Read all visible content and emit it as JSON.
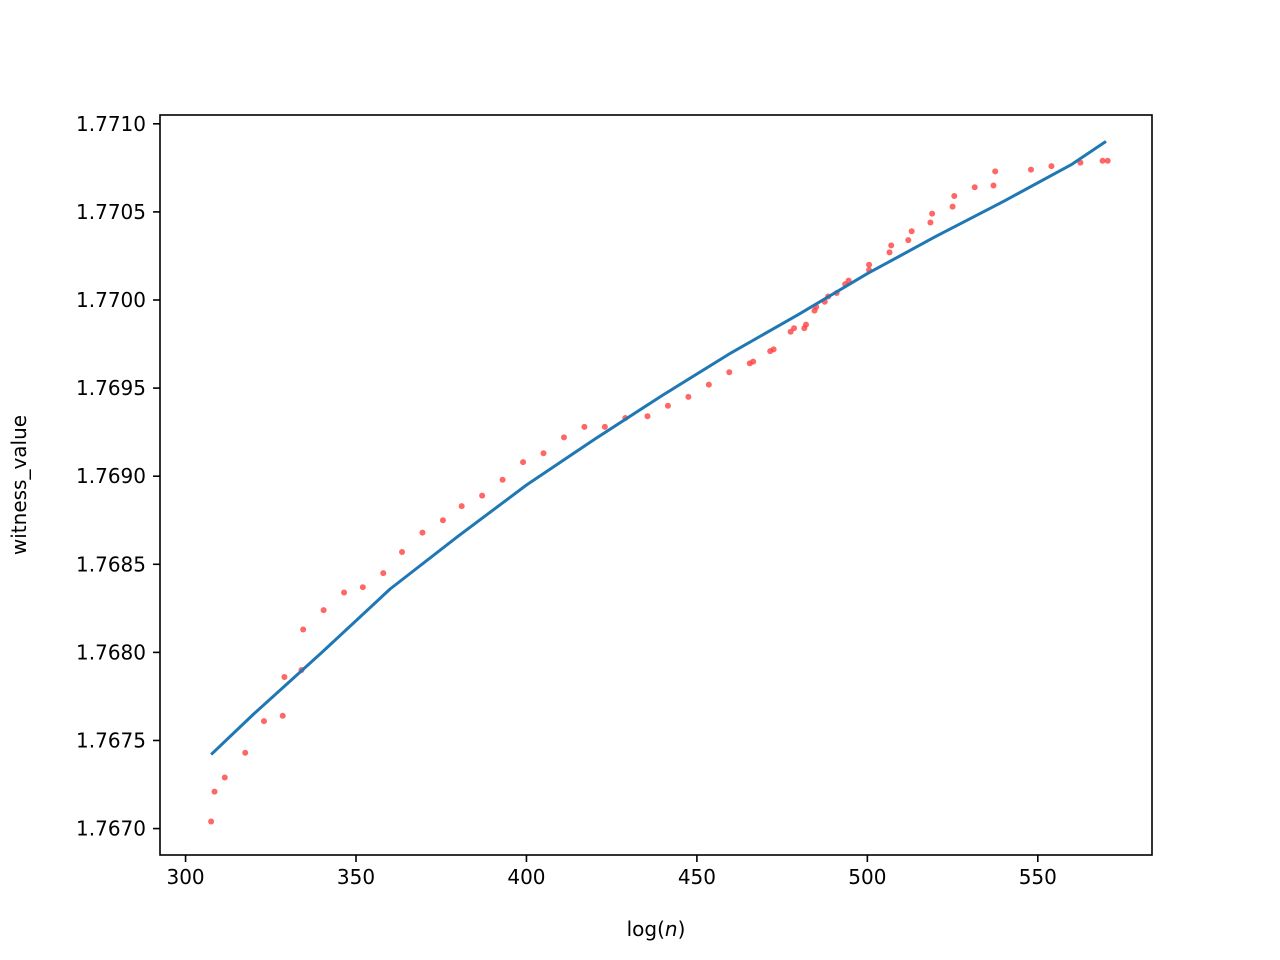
{
  "chart_data": {
    "type": "scatter",
    "title": "",
    "xlabel": "log(n)",
    "xlabel_prefix": "log(",
    "xlabel_var": "n",
    "xlabel_suffix": ")",
    "ylabel": "witness_value",
    "xlim": [
      292.5,
      583.5
    ],
    "ylim": [
      1.76685,
      1.77105
    ],
    "xticks": [
      300,
      350,
      400,
      450,
      500,
      550
    ],
    "xtick_labels": [
      "300",
      "350",
      "400",
      "450",
      "500",
      "550"
    ],
    "yticks": [
      1.767,
      1.7675,
      1.768,
      1.7685,
      1.769,
      1.7695,
      1.77,
      1.7705,
      1.771
    ],
    "ytick_labels": [
      "1.7670",
      "1.7675",
      "1.7680",
      "1.7685",
      "1.7690",
      "1.7695",
      "1.7700",
      "1.7705",
      "1.7710"
    ],
    "grid": false,
    "series": [
      {
        "kind": "scatter",
        "color": "#ff4040",
        "points": [
          [
            307.5,
            1.76704
          ],
          [
            308.5,
            1.76721
          ],
          [
            311.5,
            1.76729
          ],
          [
            317.5,
            1.76743
          ],
          [
            323.0,
            1.76761
          ],
          [
            328.5,
            1.76764
          ],
          [
            329.0,
            1.76786
          ],
          [
            334.0,
            1.7679
          ],
          [
            334.5,
            1.76813
          ],
          [
            340.5,
            1.76824
          ],
          [
            346.5,
            1.76834
          ],
          [
            352.0,
            1.76837
          ],
          [
            358.0,
            1.76845
          ],
          [
            363.5,
            1.76857
          ],
          [
            369.5,
            1.76868
          ],
          [
            375.5,
            1.76875
          ],
          [
            381.0,
            1.76883
          ],
          [
            387.0,
            1.76889
          ],
          [
            393.0,
            1.76898
          ],
          [
            399.0,
            1.76908
          ],
          [
            405.0,
            1.76913
          ],
          [
            411.0,
            1.76922
          ],
          [
            417.0,
            1.76928
          ],
          [
            423.0,
            1.76928
          ],
          [
            429.0,
            1.76933
          ],
          [
            435.5,
            1.76934
          ],
          [
            441.5,
            1.7694
          ],
          [
            447.5,
            1.76945
          ],
          [
            453.5,
            1.76952
          ],
          [
            459.5,
            1.76959
          ],
          [
            465.5,
            1.76964
          ],
          [
            466.5,
            1.76965
          ],
          [
            471.5,
            1.76971
          ],
          [
            472.5,
            1.76972
          ],
          [
            477.5,
            1.76982
          ],
          [
            478.5,
            1.76984
          ],
          [
            481.5,
            1.76984
          ],
          [
            482.0,
            1.76986
          ],
          [
            484.5,
            1.76994
          ],
          [
            485.0,
            1.76996
          ],
          [
            487.5,
            1.76999
          ],
          [
            488.5,
            1.77002
          ],
          [
            491.0,
            1.77004
          ],
          [
            493.5,
            1.77009
          ],
          [
            494.5,
            1.77011
          ],
          [
            500.5,
            1.77017
          ],
          [
            500.5,
            1.7702
          ],
          [
            506.5,
            1.77027
          ],
          [
            507.0,
            1.77031
          ],
          [
            512.0,
            1.77034
          ],
          [
            513.0,
            1.77039
          ],
          [
            518.5,
            1.77044
          ],
          [
            519.0,
            1.77049
          ],
          [
            525.0,
            1.77053
          ],
          [
            525.5,
            1.77059
          ],
          [
            531.5,
            1.77064
          ],
          [
            537.0,
            1.77065
          ],
          [
            537.5,
            1.77073
          ],
          [
            548.0,
            1.77074
          ],
          [
            554.0,
            1.77076
          ],
          [
            562.5,
            1.77078
          ],
          [
            569.0,
            1.77079
          ],
          [
            570.5,
            1.77079
          ]
        ]
      },
      {
        "kind": "line",
        "color": "#1f77b4",
        "points": [
          [
            307.5,
            1.76742
          ],
          [
            320,
            1.76765
          ],
          [
            340,
            1.768
          ],
          [
            360,
            1.76836
          ],
          [
            380,
            1.76866
          ],
          [
            400,
            1.76895
          ],
          [
            420,
            1.76921
          ],
          [
            440,
            1.76946
          ],
          [
            460,
            1.7697
          ],
          [
            480,
            1.76992
          ],
          [
            500,
            1.77015
          ],
          [
            520,
            1.77036
          ],
          [
            540,
            1.77056
          ],
          [
            560,
            1.77077
          ],
          [
            570,
            1.7709
          ]
        ]
      }
    ]
  }
}
